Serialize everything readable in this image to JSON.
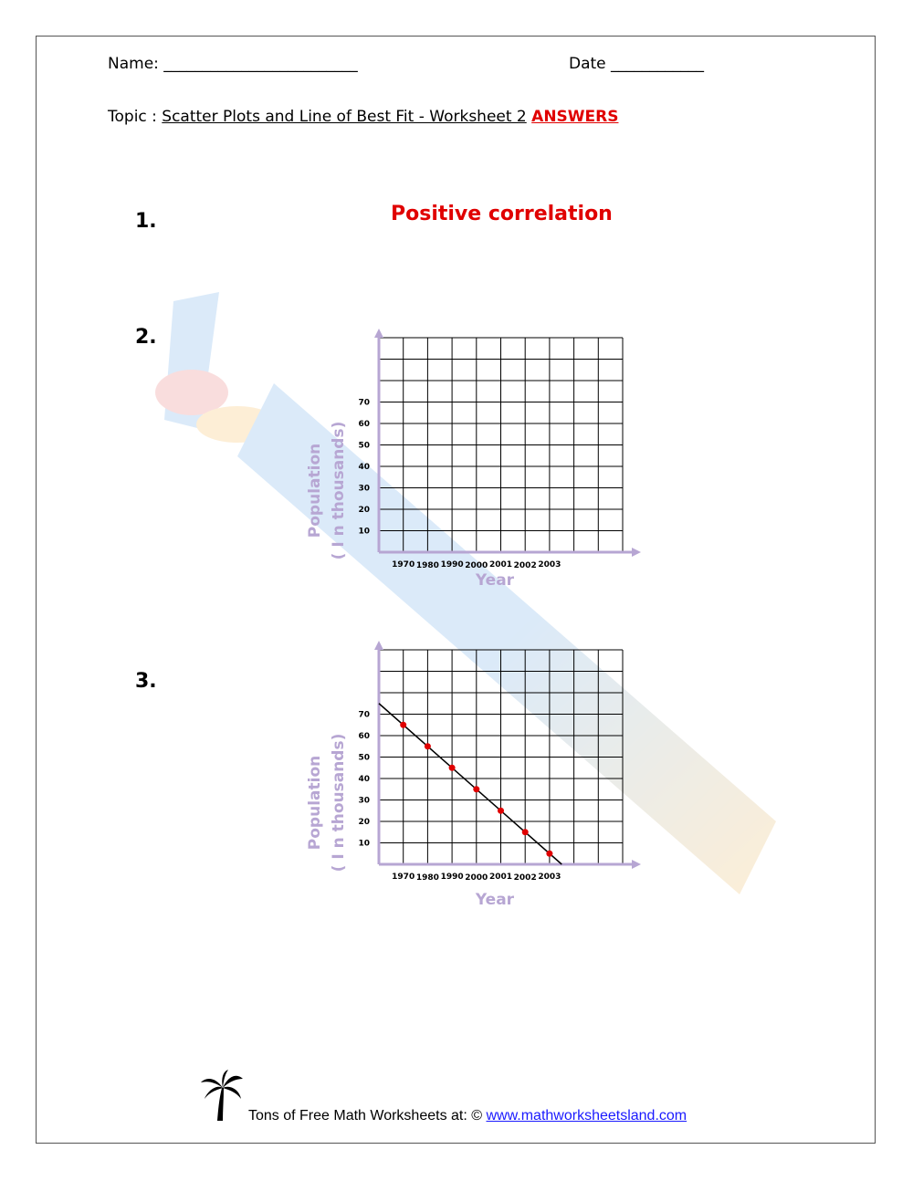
{
  "header": {
    "name_label": "Name: ",
    "name_blank": "_________________________",
    "date_label": "Date ",
    "date_blank": "____________",
    "topic_label": "Topic : ",
    "topic_text": "Scatter Plots and Line of Best Fit - Worksheet 2",
    "answers_label": "ANSWERS"
  },
  "questions": [
    {
      "number": "1.",
      "answer": "Positive correlation"
    },
    {
      "number": "2."
    },
    {
      "number": "3."
    }
  ],
  "chart_data": [
    {
      "type": "scatter",
      "title": "",
      "xlabel": "Year",
      "ylabel": "Population",
      "ylabel2": "( I n thousands)",
      "categories": [
        "1970",
        "1980",
        "1990",
        "2000",
        "2001",
        "2002",
        "2003"
      ],
      "y_ticks": [
        10,
        20,
        30,
        40,
        50,
        60,
        70
      ],
      "ylim": [
        0,
        100
      ],
      "grid": true,
      "points": [],
      "colors": {
        "axis": "#b7a6d3",
        "grid": "#000000",
        "point": "#e00000"
      }
    },
    {
      "type": "scatter",
      "title": "",
      "xlabel": "Year",
      "ylabel": "Population",
      "ylabel2": "( I n thousands)",
      "categories": [
        "1970",
        "1980",
        "1990",
        "2000",
        "2001",
        "2002",
        "2003"
      ],
      "y_ticks": [
        10,
        20,
        30,
        40,
        50,
        60,
        70
      ],
      "ylim": [
        0,
        100
      ],
      "grid": true,
      "points": [
        {
          "x": "1970",
          "y": 65
        },
        {
          "x": "1980",
          "y": 55
        },
        {
          "x": "1990",
          "y": 45
        },
        {
          "x": "2000",
          "y": 35
        },
        {
          "x": "2001",
          "y": 25
        },
        {
          "x": "2002",
          "y": 15
        },
        {
          "x": "2003",
          "y": 5
        }
      ],
      "best_fit": {
        "y_start": 75,
        "y_end": 0
      },
      "colors": {
        "axis": "#b7a6d3",
        "grid": "#000000",
        "point": "#e00000"
      }
    }
  ],
  "footer": {
    "text": "Tons of Free Math Worksheets at: © ",
    "link": "www.mathworksheetsland.com"
  }
}
